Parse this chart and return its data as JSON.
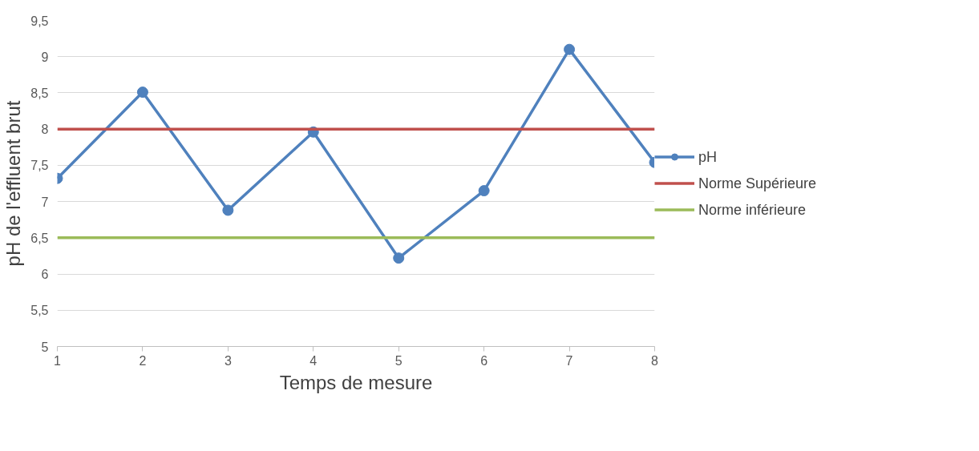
{
  "chart_data": {
    "type": "line",
    "xlabel": "Temps de mesure",
    "ylabel": "pH de l'effluent brut",
    "x": [
      1,
      2,
      3,
      4,
      5,
      6,
      7,
      8
    ],
    "series": [
      {
        "name": "pH",
        "color": "#4f81bd",
        "marker": "circle",
        "values": [
          7.32,
          8.51,
          6.88,
          7.96,
          6.22,
          7.15,
          9.1,
          7.54
        ]
      },
      {
        "name": "Norme Supérieure",
        "color": "#c0504d",
        "marker": "none",
        "values": [
          8,
          8,
          8,
          8,
          8,
          8,
          8,
          8
        ]
      },
      {
        "name": "Norme inférieure",
        "color": "#9bbb59",
        "marker": "none",
        "values": [
          6.5,
          6.5,
          6.5,
          6.5,
          6.5,
          6.5,
          6.5,
          6.5
        ]
      }
    ],
    "xlim": [
      1,
      8
    ],
    "xticks": [
      1,
      2,
      3,
      4,
      5,
      6,
      7,
      8
    ],
    "ylim": [
      5,
      9.5
    ],
    "yticks": [
      5,
      {
        "value": 5.5,
        "label": "5,5"
      },
      6,
      {
        "value": 6.5,
        "label": "6,5"
      },
      7,
      {
        "value": 7.5,
        "label": "7,5"
      },
      8,
      {
        "value": 8.5,
        "label": "8,5"
      },
      9,
      {
        "value": 9.5,
        "label": "9,5"
      }
    ],
    "grid": "y",
    "legend": "right",
    "line_style": "solid"
  }
}
